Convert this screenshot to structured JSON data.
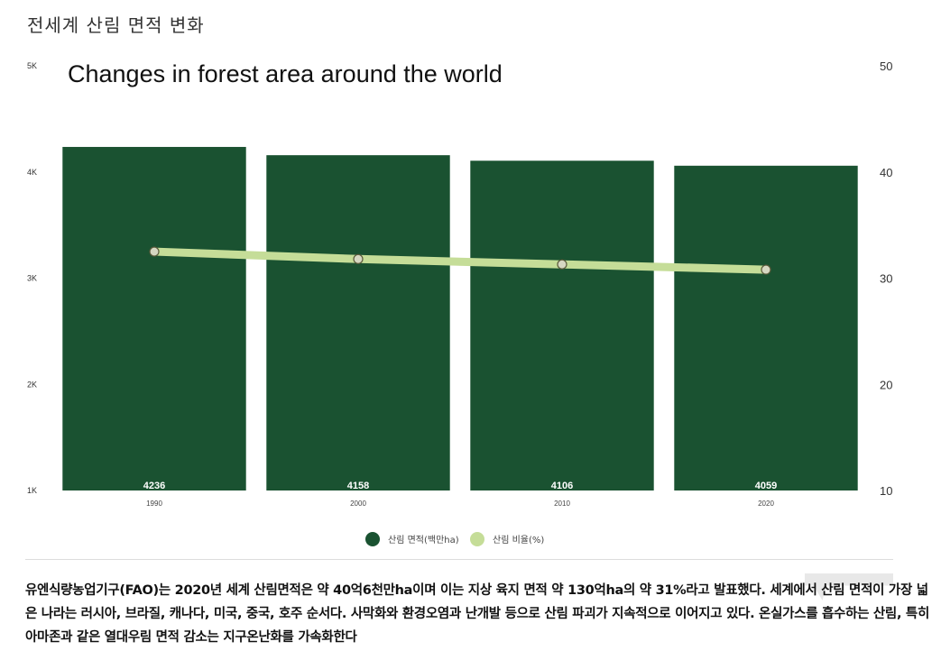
{
  "page": {
    "heading": "전세계 산림 면적 변화",
    "description": "유엔식량농업기구(FAO)는 2020년 세계 산림면적은 약 40억6천만ha이며 이는 지상 육지 면적 약 130억ha의 약 31%라고 발표했다. 세계에서 산림 면적이 가장 넓은 나라는 러시아, 브라질, 캐나다, 미국, 중국, 호주 순서다. 사막화와 환경오염과 난개발 등으로 산림 파괴가 지속적으로 이어지고 있다. 온실가스를 흡수하는 산림, 특히 아마존과 같은 열대우림 면적 감소는 지구온난화를 가속화한다"
  },
  "colors": {
    "bar": "#1a5231",
    "line": "#c5dd98",
    "marker_fill": "#d6d7c2",
    "marker_stroke": "#5a5a3a"
  },
  "chart_data": {
    "type": "bar",
    "title": "Changes in forest area around the world",
    "categories": [
      "1990",
      "2000",
      "2010",
      "2020"
    ],
    "series": [
      {
        "name": "산림 면적(백만ha)",
        "type": "bar",
        "axis": "left",
        "values": [
          4236,
          4158,
          4106,
          4059
        ],
        "data_labels": [
          "4236",
          "4158",
          "4106",
          "4059"
        ]
      },
      {
        "name": "산림 비율(%)",
        "type": "line",
        "axis": "right",
        "values": [
          32.5,
          31.8,
          31.3,
          30.8
        ]
      }
    ],
    "y_left": {
      "min": 1000,
      "max": 5000,
      "ticks": [
        1000,
        2000,
        3000,
        4000,
        5000
      ],
      "tick_labels": [
        "1K",
        "2K",
        "3K",
        "4K",
        "5K"
      ]
    },
    "y_right": {
      "min": 10,
      "max": 50,
      "ticks": [
        10,
        20,
        30,
        40,
        50
      ],
      "tick_labels": [
        "10",
        "20",
        "30",
        "40",
        "50"
      ]
    },
    "grid": false,
    "legend_position": "bottom"
  }
}
